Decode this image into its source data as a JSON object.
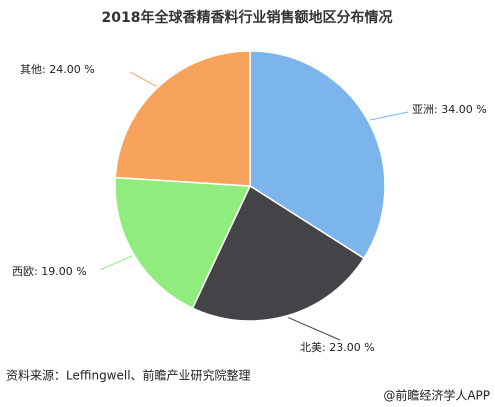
{
  "chart_data": {
    "type": "pie",
    "title": "2018年全球香精香料行业销售额地区分布情况",
    "values": [
      34,
      23,
      19,
      24
    ],
    "value_labels": [
      "亚洲: 34.00 %",
      "北美: 23.00 %",
      "西欧: 19.00 %",
      "其他: 24.00 %"
    ],
    "colors": [
      "#7cb5ec",
      "#434348",
      "#90ed7d",
      "#f7a35c"
    ]
  },
  "source": "资料来源：Leffingwell、前瞻产业研究院整理",
  "footer": "@前瞻经济学人APP"
}
